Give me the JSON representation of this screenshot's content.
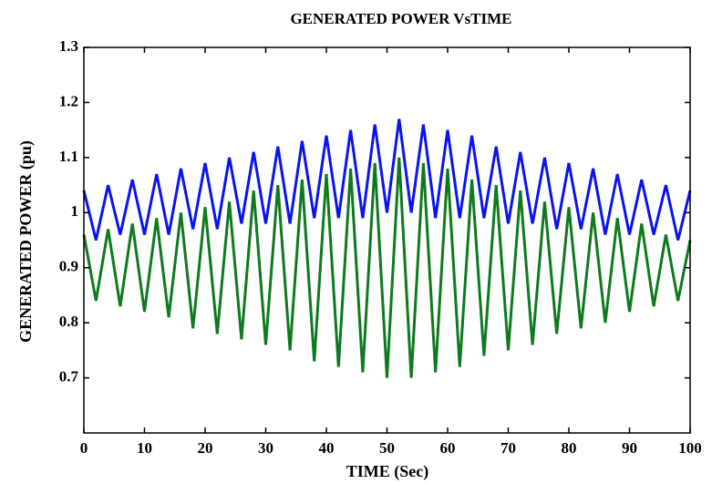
{
  "chart_data": {
    "type": "line",
    "title": "GENERATED POWER VsTIME",
    "xlabel": "TIME (Sec)",
    "ylabel": "GENERATED POWER (pu)",
    "x": [
      0,
      2,
      4,
      6,
      8,
      10,
      12,
      14,
      16,
      18,
      20,
      22,
      24,
      26,
      28,
      30,
      32,
      34,
      36,
      38,
      40,
      42,
      44,
      46,
      48,
      50,
      52,
      54,
      56,
      58,
      60,
      62,
      64,
      66,
      68,
      70,
      72,
      74,
      76,
      78,
      80,
      82,
      84,
      86,
      88,
      90,
      92,
      94,
      96,
      98,
      100
    ],
    "series": [
      {
        "color": "#0a14f0",
        "values": [
          1.04,
          0.95,
          1.05,
          0.96,
          1.06,
          0.96,
          1.07,
          0.96,
          1.08,
          0.97,
          1.09,
          0.97,
          1.1,
          0.98,
          1.11,
          0.98,
          1.12,
          0.98,
          1.13,
          0.99,
          1.14,
          0.99,
          1.15,
          0.99,
          1.16,
          1.0,
          1.17,
          1.0,
          1.16,
          0.99,
          1.15,
          0.99,
          1.14,
          0.99,
          1.12,
          0.98,
          1.11,
          0.98,
          1.1,
          0.97,
          1.09,
          0.97,
          1.08,
          0.96,
          1.07,
          0.96,
          1.06,
          0.96,
          1.05,
          0.95,
          1.04
        ]
      },
      {
        "color": "#0e7a1e",
        "values": [
          0.96,
          0.84,
          0.97,
          0.83,
          0.98,
          0.82,
          0.99,
          0.81,
          1.0,
          0.79,
          1.01,
          0.78,
          1.02,
          0.77,
          1.04,
          0.76,
          1.05,
          0.75,
          1.06,
          0.73,
          1.07,
          0.72,
          1.08,
          0.71,
          1.09,
          0.7,
          1.1,
          0.7,
          1.09,
          0.71,
          1.08,
          0.72,
          1.06,
          0.74,
          1.05,
          0.75,
          1.04,
          0.76,
          1.02,
          0.78,
          1.01,
          0.79,
          1.0,
          0.8,
          0.99,
          0.82,
          0.98,
          0.83,
          0.96,
          0.84,
          0.95
        ]
      }
    ],
    "xlim": [
      0,
      100
    ],
    "xticks": [
      0,
      10,
      20,
      30,
      40,
      50,
      60,
      70,
      80,
      90,
      100
    ],
    "ylim": [
      0.6,
      1.3
    ],
    "yticks": [
      0.7,
      0.8,
      0.9,
      1,
      1.1,
      1.2,
      1.3
    ]
  }
}
